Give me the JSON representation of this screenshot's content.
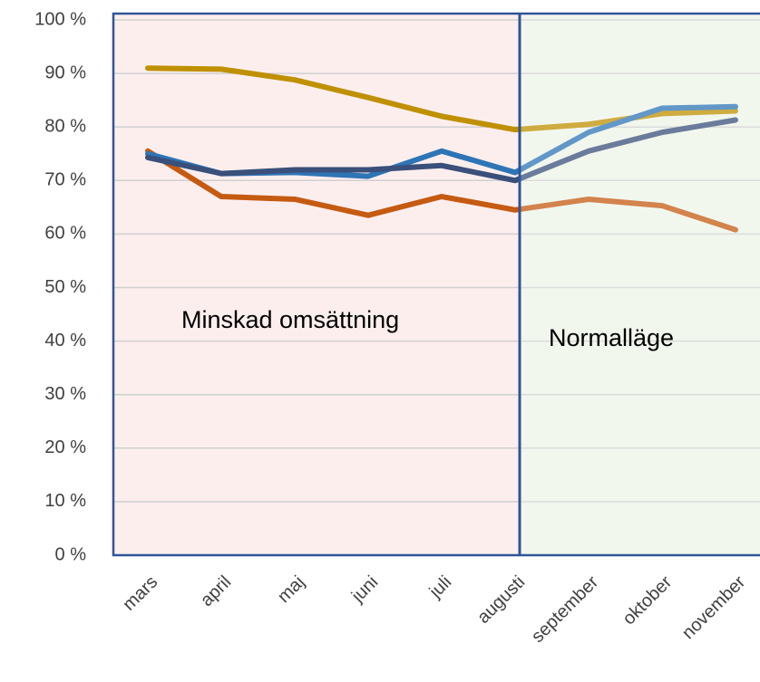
{
  "chart_data": {
    "type": "line",
    "annotations": [
      "Minskad omsättning",
      "Normalläge"
    ],
    "categories": [
      "mars",
      "april",
      "maj",
      "juni",
      "juli",
      "augusti",
      "september",
      "oktober",
      "november"
    ],
    "series": [
      {
        "color": "#bf9000",
        "values": [
          91,
          90.8,
          88.8,
          85.5,
          82,
          79.5,
          80.5,
          82.5,
          83
        ]
      },
      {
        "color": "#c55a11",
        "values": [
          75.5,
          67,
          66.5,
          63.5,
          67,
          64.5,
          66.5,
          65.3,
          60.8
        ]
      },
      {
        "color": "#2e75b6",
        "values": [
          75,
          71.3,
          71.5,
          70.8,
          75.5,
          71.5,
          79,
          83.5,
          83.8
        ]
      },
      {
        "color": "#3a4f7a",
        "values": [
          74.3,
          71.3,
          72,
          72,
          72.8,
          70,
          75.5,
          79,
          81.3
        ]
      }
    ],
    "ylim": [
      0,
      100
    ],
    "yticks": [
      {
        "value": 0,
        "label": "0 %"
      },
      {
        "value": 10,
        "label": "10 %"
      },
      {
        "value": 20,
        "label": "20 %"
      },
      {
        "value": 30,
        "label": "30 %"
      },
      {
        "value": 40,
        "label": "40 %"
      },
      {
        "value": 50,
        "label": "50 %"
      },
      {
        "value": 60,
        "label": "60 %"
      },
      {
        "value": 70,
        "label": "70 %"
      },
      {
        "value": 80,
        "label": "80 %"
      },
      {
        "value": 90,
        "label": "90 %"
      },
      {
        "value": 100,
        "label": "100 %"
      }
    ],
    "grid": true
  }
}
